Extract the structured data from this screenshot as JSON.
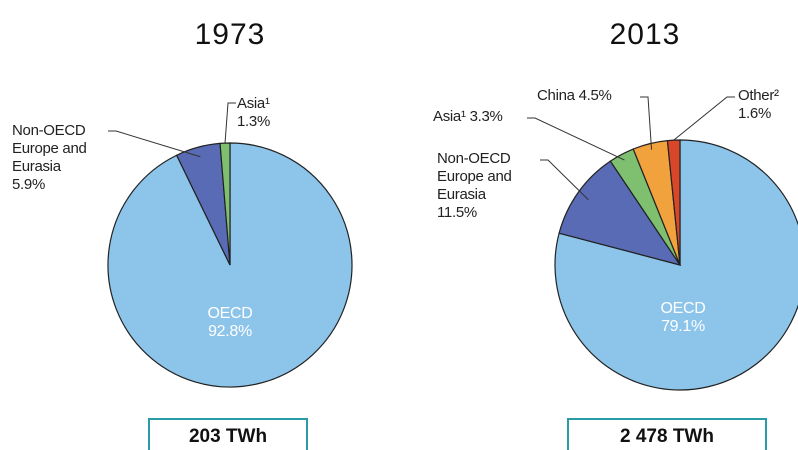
{
  "chart_data": [
    {
      "type": "pie",
      "title": "1973",
      "categories": [
        "OECD",
        "Non-OECD Europe and Eurasia",
        "Asia¹"
      ],
      "values": [
        92.8,
        5.9,
        1.3
      ],
      "value_labels": [
        "92.8%",
        "5.9%",
        "1.3%"
      ],
      "colors": [
        "#8cc4ea",
        "#5a6bb5",
        "#7fbf70"
      ],
      "total": "203 TWh"
    },
    {
      "type": "pie",
      "title": "2013",
      "categories": [
        "OECD",
        "Non-OECD Europe and Eurasia",
        "Asia¹",
        "China",
        "Other²"
      ],
      "values": [
        79.1,
        11.5,
        3.3,
        4.5,
        1.6
      ],
      "value_labels": [
        "79.1%",
        "11.5%",
        "3.3%",
        "4.5%",
        "1.6%"
      ],
      "colors": [
        "#8cc4ea",
        "#5a6bb5",
        "#7fbf70",
        "#f2a23c",
        "#d9472b"
      ],
      "total": "2 478 TWh"
    }
  ]
}
